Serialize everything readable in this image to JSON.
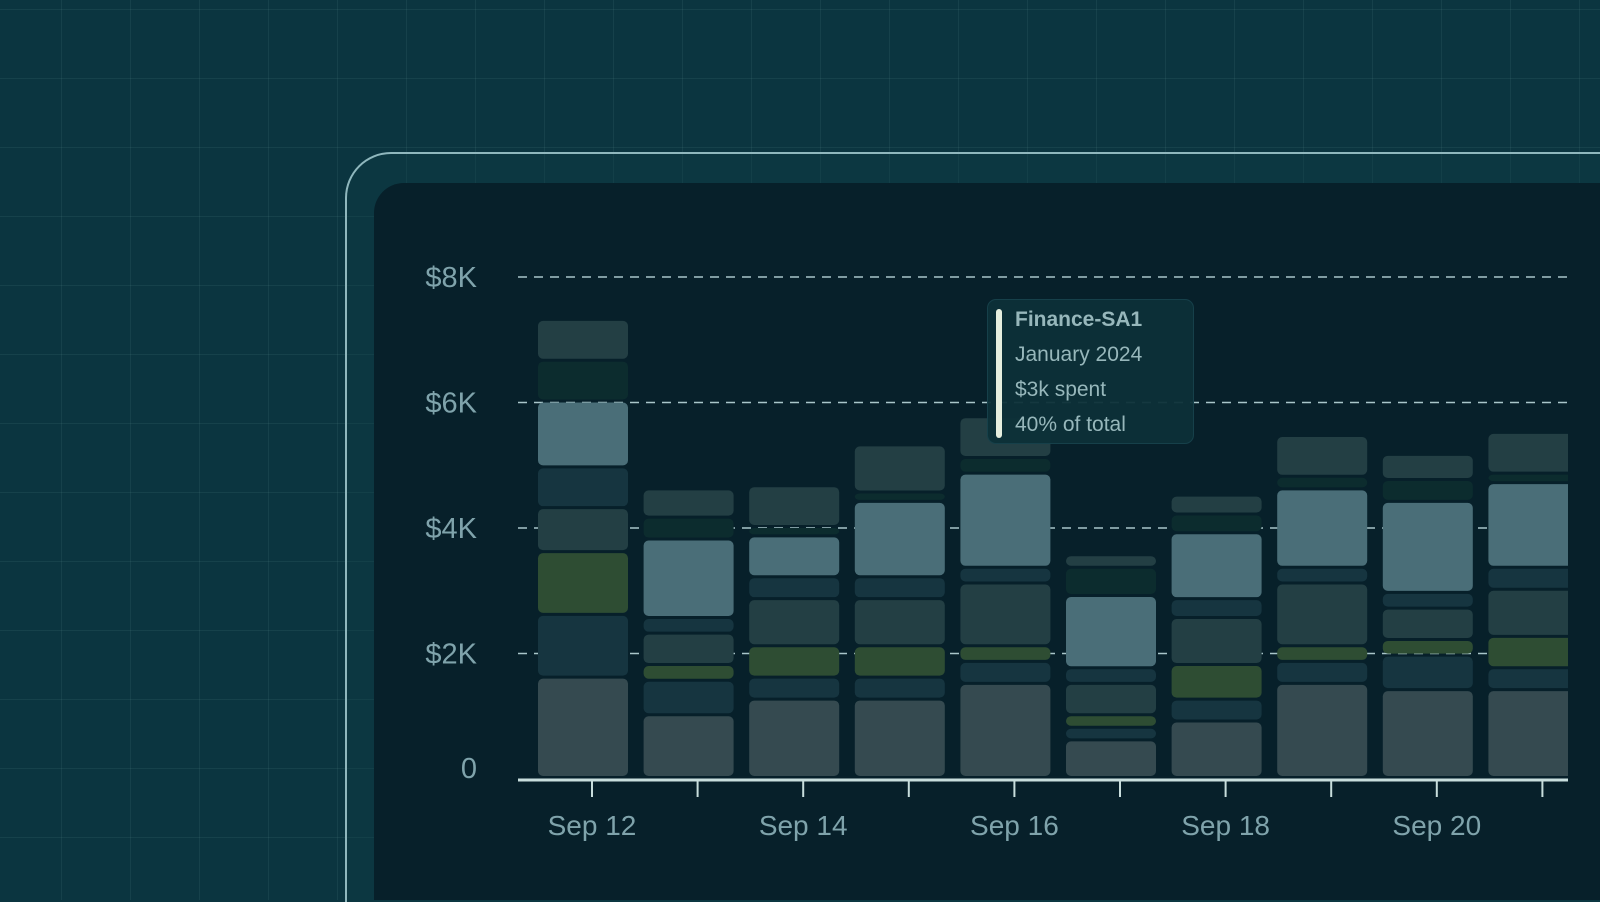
{
  "chart_data": {
    "type": "bar",
    "stacked": true,
    "categories": [
      "Sep 12",
      "",
      "Sep 14",
      "",
      "Sep 16",
      "",
      "Sep 18",
      "",
      "Sep 20",
      ""
    ],
    "ylim": [
      0,
      8000
    ],
    "y_ticks": [
      0,
      2000,
      4000,
      6000,
      8000
    ],
    "y_tick_labels": [
      "0",
      "$2K",
      "$4K",
      "$6K",
      "$8K"
    ],
    "grid": "horizontal-dashed",
    "series": [
      {
        "color": "#354a50",
        "values": [
          1600,
          1000,
          1250,
          1250,
          1500,
          600,
          900,
          1500,
          1400,
          1400
        ]
      },
      {
        "color": "#163540",
        "values": [
          1000,
          550,
          350,
          350,
          350,
          200,
          350,
          350,
          550,
          350
        ]
      },
      {
        "color": "#2e4d33",
        "values": [
          1000,
          250,
          500,
          500,
          250,
          200,
          550,
          250,
          250,
          500
        ]
      },
      {
        "color": "#233f44",
        "values": [
          700,
          500,
          750,
          750,
          1000,
          500,
          750,
          1000,
          500,
          750
        ]
      },
      {
        "color": "#163540",
        "values": [
          650,
          250,
          350,
          350,
          250,
          250,
          300,
          250,
          250,
          350
        ]
      },
      {
        "color": "#4a6e78",
        "values": [
          1050,
          1250,
          650,
          1200,
          1500,
          1150,
          1050,
          1250,
          1450,
          1350
        ]
      },
      {
        "color": "#0c2c2e",
        "values": [
          650,
          350,
          150,
          150,
          250,
          450,
          300,
          200,
          350,
          150
        ]
      },
      {
        "color": "#233f44",
        "values": [
          650,
          450,
          650,
          750,
          650,
          200,
          300,
          650,
          400,
          650
        ]
      }
    ]
  },
  "tooltip": {
    "title": "Finance-SA1",
    "period": "January 2024",
    "amount": "$3k spent",
    "share": "40% of total",
    "accent": "#e6efdf"
  },
  "colors": {
    "background": "#0b3540",
    "panel": "#07202a",
    "axis": "#c8dedd",
    "label": "#7fa3ab"
  }
}
